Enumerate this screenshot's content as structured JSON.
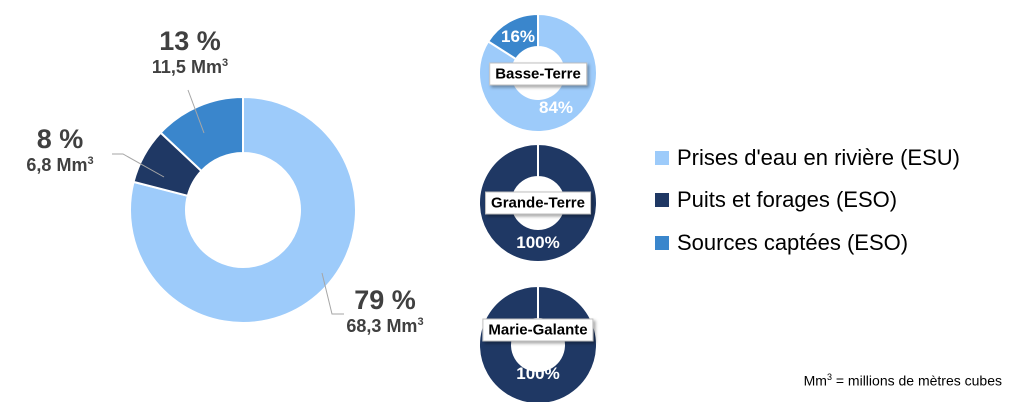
{
  "chart_data": [
    {
      "type": "pie",
      "variant": "donut",
      "title": "",
      "slices": [
        {
          "category": "Prises d'eau en rivière (ESU)",
          "percent": 79,
          "percent_label": "79 %",
          "value_label": "68,3 Mm",
          "color": "#9DCBFA"
        },
        {
          "category": "Puits et forages (ESO)",
          "percent": 8,
          "percent_label": "8 %",
          "value_label": "6,8 Mm",
          "color": "#1F3864"
        },
        {
          "category": "Sources captées (ESO)",
          "percent": 13,
          "percent_label": "13 %",
          "value_label": "11,5 Mm",
          "color": "#3A86CC"
        }
      ]
    },
    {
      "type": "pie",
      "variant": "donut",
      "title": "Basse-Terre",
      "slices": [
        {
          "category": "Prises d'eau en rivière (ESU)",
          "percent": 84,
          "label": "84%",
          "color": "#9DCBFA"
        },
        {
          "category": "Sources captées (ESO)",
          "percent": 16,
          "label": "16%",
          "color": "#3A86CC"
        }
      ]
    },
    {
      "type": "pie",
      "variant": "donut",
      "title": "Grande-Terre",
      "slices": [
        {
          "category": "Puits et forages (ESO)",
          "percent": 100,
          "label": "100%",
          "color": "#1F3864"
        }
      ]
    },
    {
      "type": "pie",
      "variant": "donut",
      "title": "Marie-Galante",
      "slices": [
        {
          "category": "Puits et forages (ESO)",
          "percent": 100,
          "label": "100%",
          "color": "#1F3864"
        }
      ]
    }
  ],
  "legend": {
    "position": "right",
    "items": [
      {
        "label": "Prises d'eau en rivière (ESU)",
        "color": "#9DCBFA"
      },
      {
        "label": "Puits et forages (ESO)",
        "color": "#1F3864"
      },
      {
        "label": "Sources captées (ESO)",
        "color": "#3A86CC"
      }
    ]
  },
  "unit_superscript": "3",
  "note": {
    "prefix": "Mm",
    "sup": "3",
    "suffix": " = millions de mètres cubes"
  }
}
